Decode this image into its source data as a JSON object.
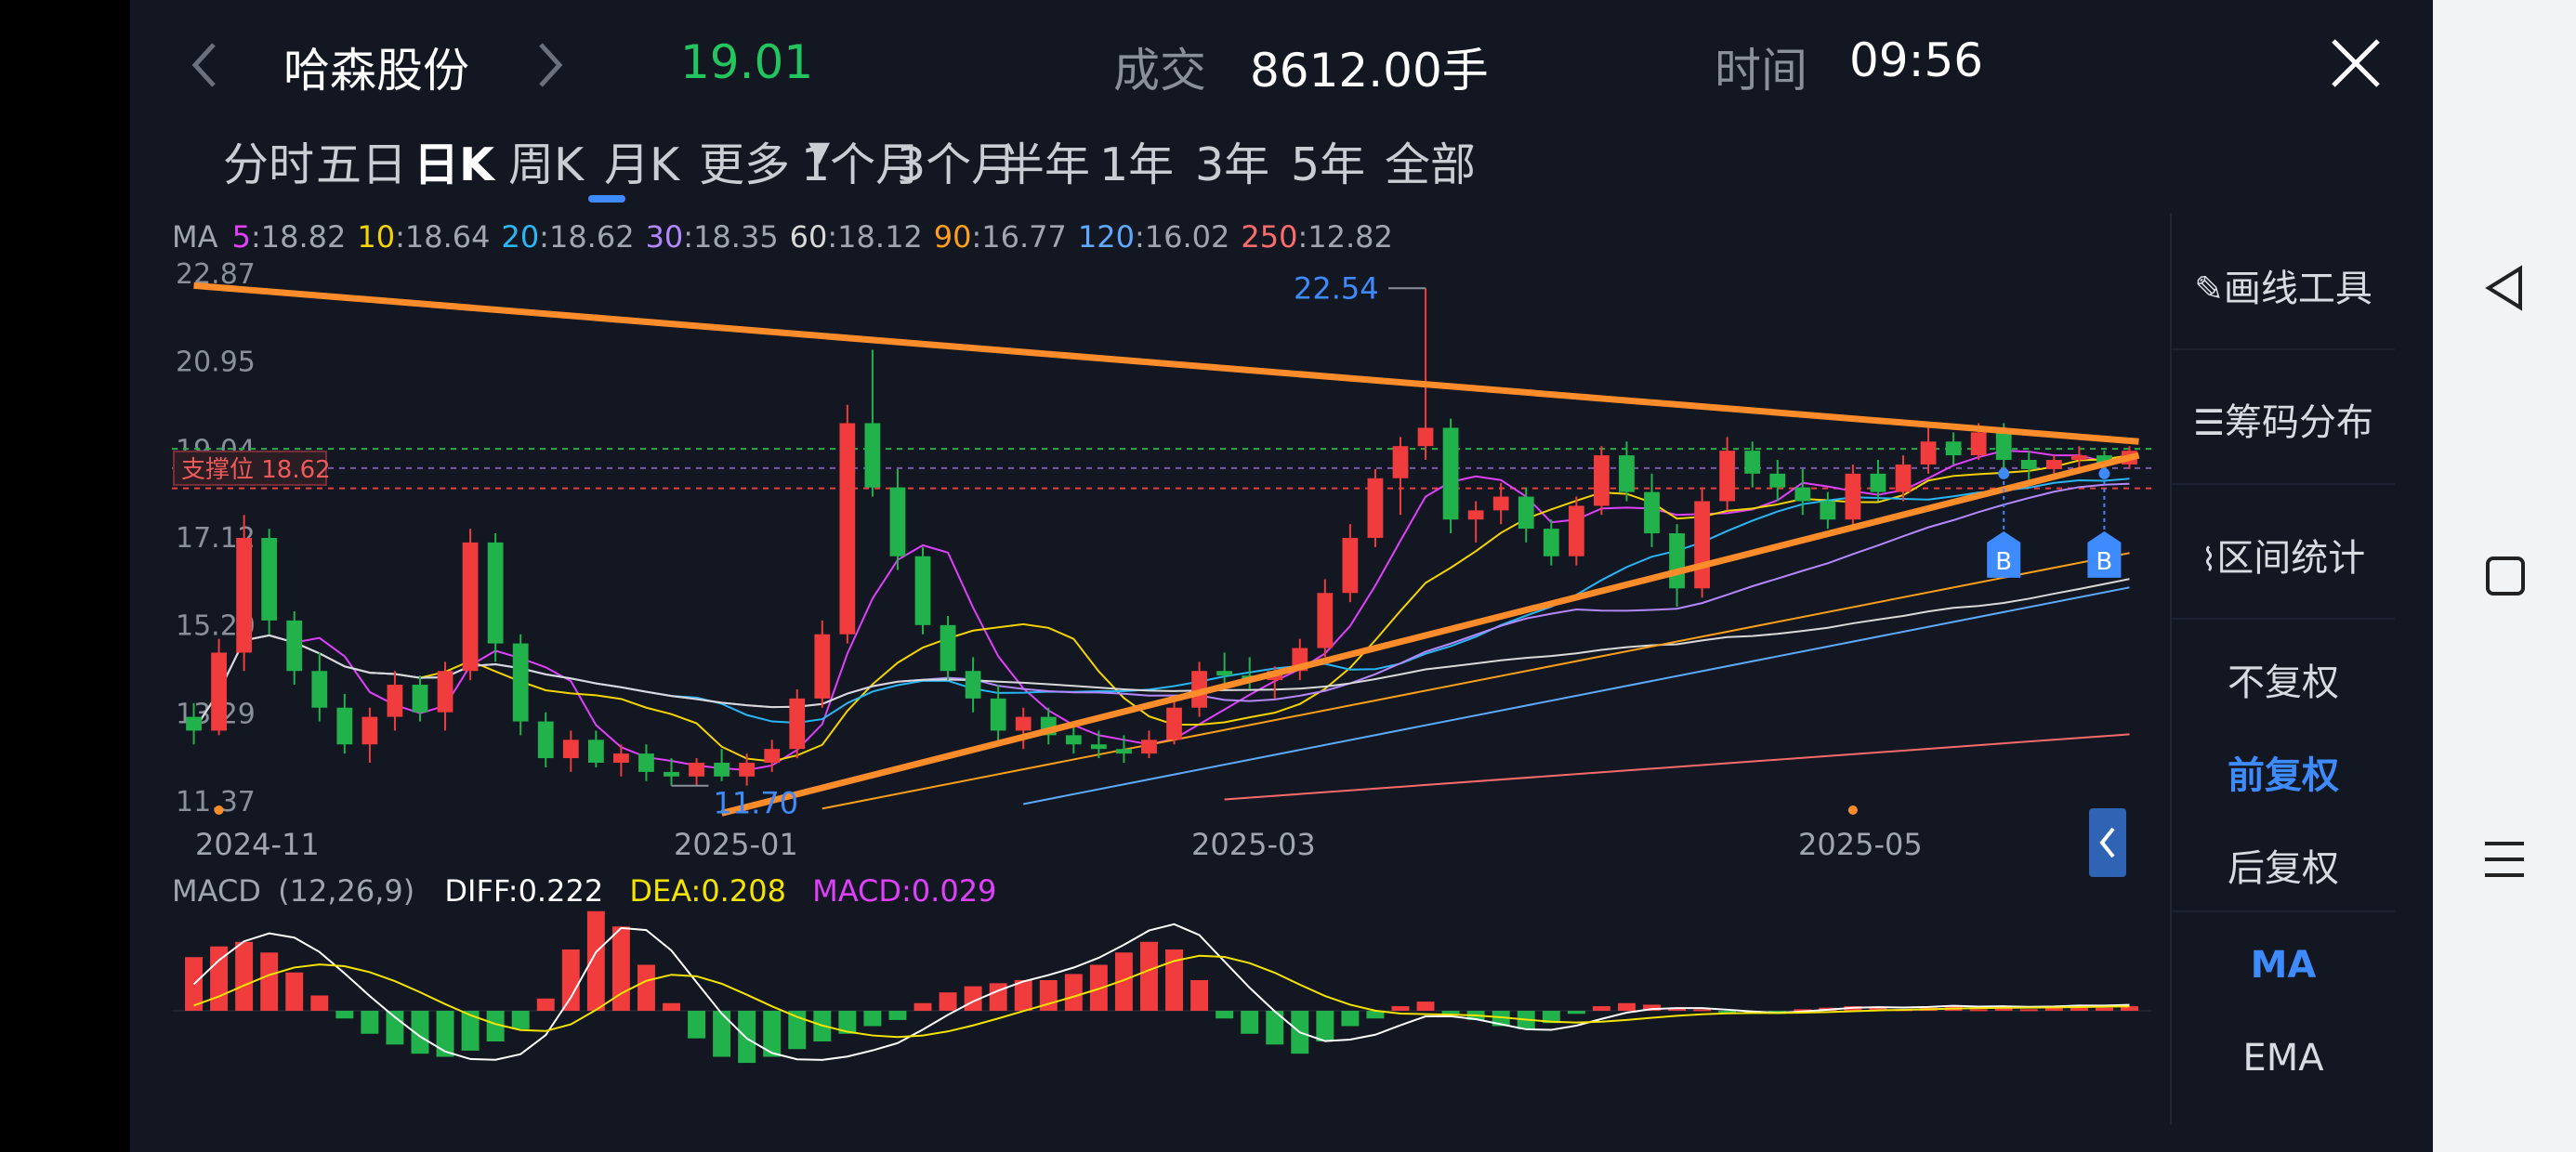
{
  "header": {
    "stock_name": "哈森股份",
    "price": "19.01",
    "volume_label": "成交",
    "volume_value": "8612.00手",
    "time_label": "时间",
    "time_value": "09:56"
  },
  "tabs": [
    {
      "label": "分时"
    },
    {
      "label": "五日"
    },
    {
      "label": "日K",
      "active": true
    },
    {
      "label": "周K"
    },
    {
      "label": "月K"
    },
    {
      "label": "更多"
    },
    {
      "label": "1个月"
    },
    {
      "label": "3个月"
    },
    {
      "label": "半年"
    },
    {
      "label": "1年"
    },
    {
      "label": "3年"
    },
    {
      "label": "5年"
    },
    {
      "label": "全部"
    }
  ],
  "ma_legend": {
    "label": "MA",
    "items": [
      {
        "period": "5",
        "value": ":18.82",
        "color": "#e040fb"
      },
      {
        "period": "10",
        "value": ":18.64",
        "color": "#f5d400"
      },
      {
        "period": "20",
        "value": ":18.62",
        "color": "#29b6f6"
      },
      {
        "period": "30",
        "value": ":18.35",
        "color": "#b388ff"
      },
      {
        "period": "60",
        "value": ":18.12",
        "color": "#d9d9d9"
      },
      {
        "period": "90",
        "value": ":16.77",
        "color": "#ff9f1a"
      },
      {
        "period": "120",
        "value": ":16.02",
        "color": "#5ea9ff"
      },
      {
        "period": "250",
        "value": ":12.82",
        "color": "#ff6b6b"
      }
    ]
  },
  "price_axis": [
    "22.87",
    "20.95",
    "19.04",
    "17.12",
    "15.20",
    "13.29",
    "11.37"
  ],
  "annotations": {
    "high": "22.54",
    "low": "11.70",
    "support": "支撑位 18.62",
    "buy_marker": "B"
  },
  "date_axis": [
    "2024-11",
    "2025-01",
    "2025-03",
    "2025-05"
  ],
  "macd": {
    "label": "MACD",
    "params": "(12,26,9)",
    "diff": "DIFF:0.222",
    "dea": "DEA:0.208",
    "macd": "MACD:0.029"
  },
  "side_panel": {
    "draw_tool": "画线工具",
    "chip_dist": "筹码分布",
    "range_stats": "区间统计",
    "no_adjust": "不复权",
    "forward_adjust": "前复权",
    "back_adjust": "后复权",
    "ma": "MA",
    "ema": "EMA"
  },
  "colors": {
    "background": "#121722",
    "up": "#f03c3c",
    "down": "#22b24c",
    "accent": "#3d8bff",
    "trendline": "#ff8c2a",
    "price": "#22c55e"
  },
  "chart_data": {
    "type": "candlestick",
    "price_range": [
      11.37,
      22.87
    ],
    "candles_ohlc": [
      [
        13.2,
        13.5,
        12.6,
        12.9
      ],
      [
        12.9,
        14.9,
        12.8,
        14.6
      ],
      [
        14.6,
        17.6,
        14.2,
        17.1
      ],
      [
        17.1,
        17.3,
        15.0,
        15.3
      ],
      [
        15.3,
        15.5,
        13.9,
        14.2
      ],
      [
        14.2,
        14.6,
        13.1,
        13.4
      ],
      [
        13.4,
        13.7,
        12.4,
        12.6
      ],
      [
        12.6,
        13.4,
        12.2,
        13.2
      ],
      [
        13.2,
        14.2,
        12.9,
        13.9
      ],
      [
        13.9,
        14.1,
        13.1,
        13.3
      ],
      [
        13.3,
        14.4,
        12.9,
        14.2
      ],
      [
        14.2,
        17.3,
        14.0,
        17.0
      ],
      [
        17.0,
        17.2,
        14.4,
        14.8
      ],
      [
        14.8,
        15.0,
        12.8,
        13.1
      ],
      [
        13.1,
        13.3,
        12.1,
        12.3
      ],
      [
        12.3,
        12.9,
        12.0,
        12.7
      ],
      [
        12.7,
        12.9,
        12.1,
        12.2
      ],
      [
        12.2,
        12.6,
        11.9,
        12.4
      ],
      [
        12.4,
        12.6,
        11.8,
        12.0
      ],
      [
        12.0,
        12.3,
        11.7,
        11.9
      ],
      [
        11.9,
        12.3,
        11.7,
        12.2
      ],
      [
        12.2,
        12.5,
        11.8,
        11.9
      ],
      [
        11.9,
        12.4,
        11.7,
        12.2
      ],
      [
        12.2,
        12.7,
        12.0,
        12.5
      ],
      [
        12.5,
        13.8,
        12.3,
        13.6
      ],
      [
        13.6,
        15.3,
        13.4,
        15.0
      ],
      [
        15.0,
        20.0,
        14.8,
        19.6
      ],
      [
        19.6,
        21.2,
        18.0,
        18.2
      ],
      [
        18.2,
        18.6,
        16.4,
        16.7
      ],
      [
        16.7,
        16.9,
        15.0,
        15.2
      ],
      [
        15.2,
        15.4,
        14.0,
        14.2
      ],
      [
        14.2,
        14.5,
        13.3,
        13.6
      ],
      [
        13.6,
        13.9,
        12.6,
        12.9
      ],
      [
        12.9,
        13.4,
        12.5,
        13.2
      ],
      [
        13.2,
        13.4,
        12.6,
        12.8
      ],
      [
        12.8,
        13.0,
        12.4,
        12.6
      ],
      [
        12.6,
        12.9,
        12.3,
        12.5
      ],
      [
        12.5,
        12.8,
        12.2,
        12.4
      ],
      [
        12.4,
        12.9,
        12.3,
        12.7
      ],
      [
        12.7,
        13.6,
        12.6,
        13.4
      ],
      [
        13.4,
        14.4,
        13.2,
        14.2
      ],
      [
        14.2,
        14.6,
        13.9,
        14.1
      ],
      [
        14.1,
        14.5,
        13.8,
        14.0
      ],
      [
        14.0,
        14.3,
        13.6,
        14.2
      ],
      [
        14.2,
        14.9,
        14.0,
        14.7
      ],
      [
        14.7,
        16.2,
        14.5,
        15.9
      ],
      [
        15.9,
        17.4,
        15.7,
        17.1
      ],
      [
        17.1,
        18.6,
        16.9,
        18.4
      ],
      [
        18.4,
        19.3,
        17.6,
        19.1
      ],
      [
        19.1,
        22.54,
        18.8,
        19.5
      ],
      [
        19.5,
        19.7,
        17.2,
        17.5
      ],
      [
        17.5,
        17.9,
        17.0,
        17.7
      ],
      [
        17.7,
        18.3,
        17.4,
        18.0
      ],
      [
        18.0,
        18.2,
        17.0,
        17.3
      ],
      [
        17.3,
        17.5,
        16.5,
        16.7
      ],
      [
        16.7,
        18.0,
        16.5,
        17.8
      ],
      [
        17.8,
        19.1,
        17.6,
        18.9
      ],
      [
        18.9,
        19.2,
        17.9,
        18.1
      ],
      [
        18.1,
        18.5,
        16.9,
        17.2
      ],
      [
        17.2,
        17.4,
        15.6,
        16.0
      ],
      [
        16.0,
        18.2,
        15.8,
        17.9
      ],
      [
        17.9,
        19.3,
        17.7,
        19.0
      ],
      [
        19.0,
        19.2,
        18.2,
        18.5
      ],
      [
        18.5,
        18.8,
        17.9,
        18.2
      ],
      [
        18.2,
        18.6,
        17.6,
        17.9
      ],
      [
        17.9,
        18.1,
        17.3,
        17.5
      ],
      [
        17.5,
        18.7,
        17.3,
        18.5
      ],
      [
        18.5,
        18.8,
        17.9,
        18.1
      ],
      [
        18.1,
        18.9,
        17.9,
        18.7
      ],
      [
        18.7,
        19.5,
        18.5,
        19.2
      ],
      [
        19.2,
        19.4,
        18.7,
        18.9
      ],
      [
        18.9,
        19.6,
        18.8,
        19.4
      ],
      [
        19.4,
        19.6,
        18.6,
        18.8
      ],
      [
        18.8,
        19.0,
        18.3,
        18.6
      ],
      [
        18.6,
        18.9,
        18.4,
        18.8
      ],
      [
        18.8,
        19.1,
        18.6,
        18.9
      ],
      [
        18.9,
        19.0,
        18.6,
        18.7
      ],
      [
        18.7,
        19.1,
        18.6,
        19.0
      ]
    ],
    "trendlines": [
      {
        "name": "resistance",
        "from": [
          0,
          22.6
        ],
        "to": [
          77,
          19.2
        ]
      },
      {
        "name": "support",
        "from": [
          21,
          11.1
        ],
        "to": [
          77,
          18.9
        ]
      }
    ],
    "support_level": 18.62,
    "macd_hist": [
      0.35,
      0.42,
      0.45,
      0.38,
      0.25,
      0.1,
      -0.05,
      -0.15,
      -0.22,
      -0.28,
      -0.3,
      -0.26,
      -0.2,
      -0.12,
      0.08,
      0.4,
      0.65,
      0.55,
      0.3,
      0.05,
      -0.18,
      -0.3,
      -0.34,
      -0.3,
      -0.25,
      -0.2,
      -0.15,
      -0.1,
      -0.06,
      0.05,
      0.12,
      0.16,
      0.18,
      0.2,
      0.2,
      0.24,
      0.3,
      0.38,
      0.45,
      0.4,
      0.2,
      -0.05,
      -0.15,
      -0.22,
      -0.28,
      -0.2,
      -0.1,
      -0.05,
      0.03,
      0.06,
      -0.02,
      -0.06,
      -0.1,
      -0.12,
      -0.08,
      -0.02,
      0.03,
      0.05,
      0.04,
      0.02,
      0.01,
      -0.01,
      -0.02,
      -0.02,
      0.01,
      0.02,
      0.03,
      0.02,
      0.01,
      0.02,
      0.03,
      0.01,
      0.02,
      0.01,
      0.02,
      0.03,
      0.02,
      0.03
    ]
  }
}
